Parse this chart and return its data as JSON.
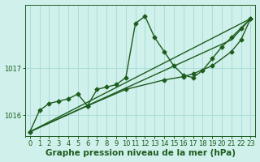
{
  "bg_color": "#cff0eb",
  "grid_color": "#aaddd8",
  "line_color": "#1e5c1e",
  "xlabel": "Graphe pression niveau de la mer (hPa)",
  "xlim": [
    -0.5,
    23.5
  ],
  "ylim": [
    1015.55,
    1018.35
  ],
  "yticks": [
    1016,
    1017
  ],
  "xticks": [
    0,
    1,
    2,
    3,
    4,
    5,
    6,
    7,
    8,
    9,
    10,
    11,
    12,
    13,
    14,
    15,
    16,
    17,
    18,
    19,
    20,
    21,
    22,
    23
  ],
  "series": [
    {
      "x": [
        0,
        1,
        2,
        3,
        4,
        5,
        6,
        7,
        8,
        9,
        10,
        11,
        12,
        13,
        14,
        15,
        16,
        17,
        18,
        19,
        20,
        21,
        22,
        23
      ],
      "y": [
        1015.65,
        1016.1,
        1016.25,
        1016.3,
        1016.35,
        1016.45,
        1016.2,
        1016.55,
        1016.6,
        1016.65,
        1016.8,
        1017.95,
        1018.1,
        1017.65,
        1017.35,
        1017.05,
        1016.85,
        1016.8,
        1016.95,
        1017.2,
        1017.45,
        1017.65,
        1017.85,
        1018.05
      ],
      "marker": "D",
      "markersize": 2.5,
      "linewidth": 1.0
    },
    {
      "x": [
        0,
        23
      ],
      "y": [
        1015.65,
        1018.05
      ],
      "marker": null,
      "markersize": 0,
      "linewidth": 1.0
    },
    {
      "x": [
        0,
        21,
        23
      ],
      "y": [
        1015.65,
        1017.6,
        1018.05
      ],
      "marker": null,
      "markersize": 0,
      "linewidth": 1.0
    },
    {
      "x": [
        0,
        6,
        10,
        14,
        16,
        17,
        19,
        21,
        22,
        23
      ],
      "y": [
        1015.65,
        1016.2,
        1016.55,
        1016.75,
        1016.82,
        1016.88,
        1017.05,
        1017.35,
        1017.6,
        1018.05
      ],
      "marker": "D",
      "markersize": 2.5,
      "linewidth": 1.0
    }
  ],
  "xlabel_fontsize": 7.5,
  "tick_fontsize": 6
}
